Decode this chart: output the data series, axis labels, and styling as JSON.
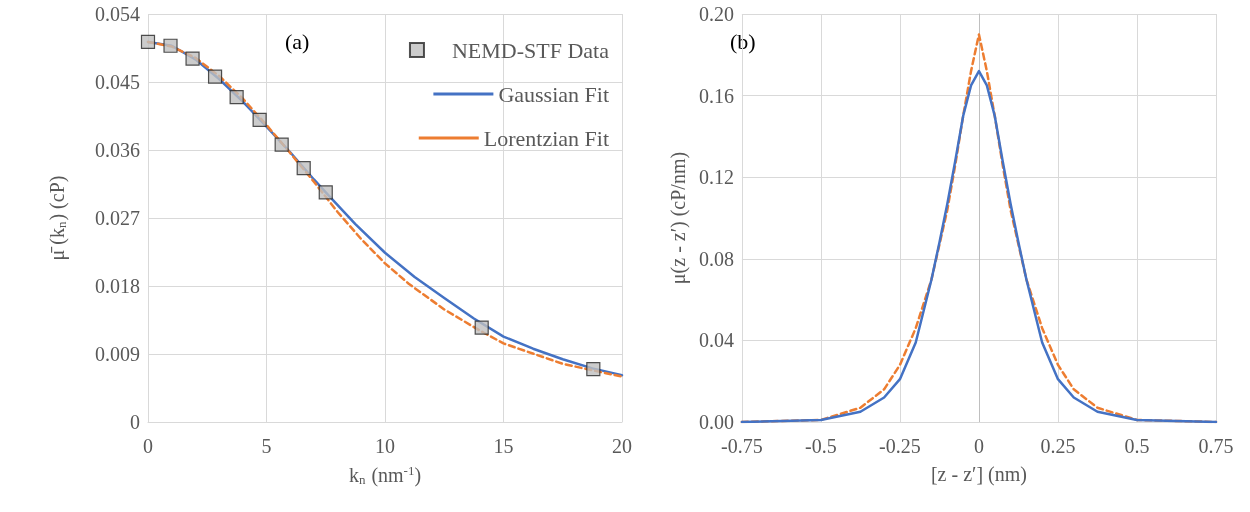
{
  "chart_data": [
    {
      "type": "scatter",
      "xlabel": "k$_{n}$ (nm$^{-1}$)",
      "ylabel": "μ̄ (k$_{n}$) (cP)",
      "annotations": [
        "(a)"
      ],
      "xlim": [
        0,
        20
      ],
      "xticks": [
        0,
        5,
        10,
        15,
        20
      ],
      "ylim": [
        0,
        0.054
      ],
      "yticks": [
        0,
        0.009,
        0.018,
        0.027,
        0.036,
        0.045,
        0.054
      ],
      "grid": true,
      "legend": "top right",
      "series": [
        {
          "name": "NEMD-STF Data",
          "marker": "square",
          "color": "#bfbfbf",
          "x": [
            0,
            0.95,
            1.88,
            2.83,
            3.74,
            4.71,
            5.64,
            6.57,
            7.5,
            14.08,
            18.79
          ],
          "values": [
            0.0503,
            0.0498,
            0.0481,
            0.0457,
            0.043,
            0.04,
            0.0367,
            0.0336,
            0.0304,
            0.0125,
            0.007
          ]
        },
        {
          "name": "Gaussian Fit",
          "type": "line",
          "marker": "none",
          "line_style": "solid",
          "color": "#4472c4",
          "x": [
            0,
            1,
            2,
            3,
            4,
            5,
            6,
            7,
            7.5,
            8.75,
            10,
            11.25,
            12.5,
            13.75,
            15,
            16.25,
            17.5,
            18.75,
            20
          ],
          "values": [
            0.0503,
            0.0498,
            0.048,
            0.0454,
            0.0424,
            0.0391,
            0.0357,
            0.0321,
            0.0304,
            0.0262,
            0.0224,
            0.0192,
            0.0164,
            0.0137,
            0.0113,
            0.0097,
            0.0083,
            0.0071,
            0.0062
          ]
        },
        {
          "name": "Lorentzian Fit",
          "type": "line",
          "marker": "none",
          "line_style": "dashed",
          "color": "#ed7d31",
          "x": [
            0,
            1,
            2,
            3,
            4,
            5,
            6,
            7,
            8,
            9,
            10,
            11,
            12.5,
            14,
            15,
            17.5,
            20
          ],
          "values": [
            0.0503,
            0.0497,
            0.0482,
            0.0458,
            0.0428,
            0.0393,
            0.0356,
            0.0318,
            0.0278,
            0.0242,
            0.021,
            0.0183,
            0.0149,
            0.0121,
            0.0104,
            0.0077,
            0.006
          ]
        }
      ]
    },
    {
      "type": "line",
      "xlabel": "[z - z′] (nm)",
      "ylabel": "μ(z - z′) (cP/nm)",
      "annotations": [
        "(b)"
      ],
      "xlim": [
        -0.75,
        0.75
      ],
      "xticks": [
        -0.75,
        -0.5,
        -0.25,
        0,
        0.25,
        0.5,
        0.75
      ],
      "ylim": [
        0,
        0.2
      ],
      "yticks": [
        {
          "value": 0,
          "label": "0.00"
        },
        {
          "value": 0.04,
          "label": "0.04"
        },
        {
          "value": 0.08,
          "label": "0.08"
        },
        {
          "value": 0.12,
          "label": "0.12"
        },
        {
          "value": 0.16,
          "label": "0.16"
        },
        {
          "value": 0.2,
          "label": "0.20"
        }
      ],
      "grid": true,
      "legend": false,
      "series": [
        {
          "marker": "none",
          "line_style": "dashed",
          "color": "#ed7d31",
          "x": [
            -0.75,
            -0.5,
            -0.375,
            -0.3,
            -0.25,
            -0.2,
            -0.15,
            -0.1,
            -0.075,
            -0.05,
            -0.025,
            0,
            0.025,
            0.05,
            0.075,
            0.1,
            0.15,
            0.2,
            0.25,
            0.3,
            0.375,
            0.5,
            0.75
          ],
          "values": [
            0,
            0.001,
            0.007,
            0.016,
            0.028,
            0.046,
            0.07,
            0.104,
            0.126,
            0.15,
            0.172,
            0.19,
            0.172,
            0.15,
            0.126,
            0.104,
            0.07,
            0.046,
            0.028,
            0.016,
            0.007,
            0.001,
            0
          ]
        },
        {
          "marker": "none",
          "line_style": "solid",
          "color": "#4472c4",
          "x": [
            -0.75,
            -0.5,
            -0.375,
            -0.3,
            -0.25,
            -0.2,
            -0.15,
            -0.125,
            -0.1,
            -0.075,
            -0.05,
            -0.025,
            0,
            0.025,
            0.05,
            0.075,
            0.1,
            0.125,
            0.15,
            0.2,
            0.25,
            0.3,
            0.375,
            0.5,
            0.75
          ],
          "values": [
            0,
            0.001,
            0.005,
            0.012,
            0.021,
            0.039,
            0.07,
            0.088,
            0.107,
            0.128,
            0.15,
            0.165,
            0.172,
            0.165,
            0.15,
            0.128,
            0.107,
            0.088,
            0.07,
            0.039,
            0.021,
            0.012,
            0.005,
            0.001,
            0
          ]
        }
      ]
    }
  ]
}
